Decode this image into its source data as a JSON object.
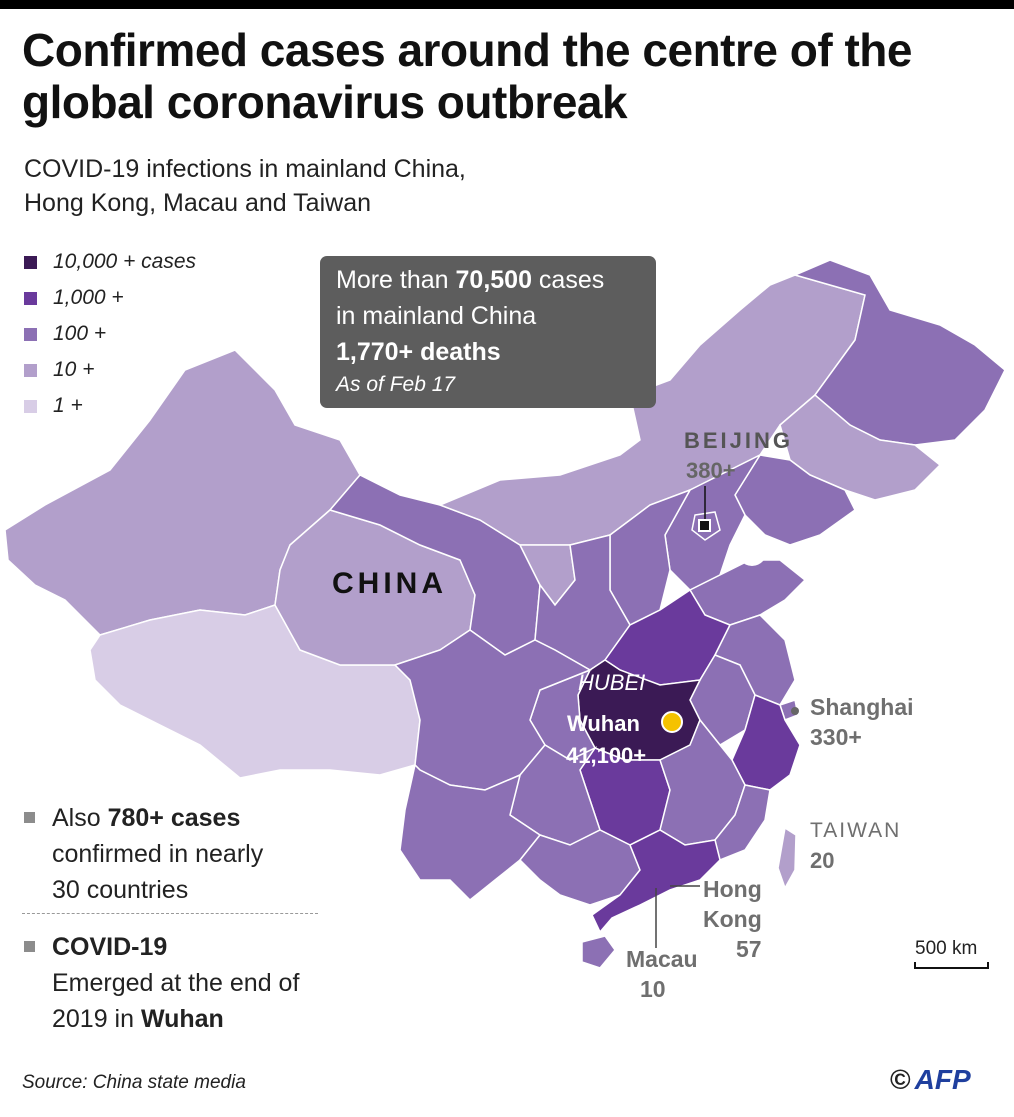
{
  "title": "Confirmed cases around the centre of the global coronavirus outbreak",
  "subtitle_line1": "COVID-19 infections in mainland China,",
  "subtitle_line2": "Hong Kong, Macau and Taiwan",
  "legend": [
    {
      "label": "10,000 + cases",
      "color": "#3b1a55"
    },
    {
      "label": "1,000 +",
      "color": "#6a3a9c"
    },
    {
      "label": "100 +",
      "color": "#8c70b4"
    },
    {
      "label": "10 +",
      "color": "#b29fcb"
    },
    {
      "label": "1 +",
      "color": "#d8cde6"
    }
  ],
  "callout": {
    "line1_pre": "More than ",
    "line1_bold": "70,500",
    "line1_post": " cases",
    "line2": "in mainland China",
    "line3": "1,770+ deaths",
    "line4": "As of Feb 17"
  },
  "map_labels": {
    "country": "CHINA",
    "beijing_name": "BEIJING",
    "beijing_count": "380+",
    "province": "HUBEI",
    "wuhan_name": "Wuhan",
    "wuhan_count": "41,100+",
    "shanghai_name": "Shanghai",
    "shanghai_count": "330+",
    "taiwan_name": "TAIWAN",
    "taiwan_count": "20",
    "hongkong_name_1": "Hong",
    "hongkong_name_2": "Kong",
    "hongkong_count": "57",
    "macau_name": "Macau",
    "macau_count": "10",
    "scale": "500 km"
  },
  "notes": {
    "n1_pre": "Also ",
    "n1_bold": "780+ cases",
    "n1_line2": "confirmed in nearly",
    "n1_line3": "30 countries",
    "n2_bold": "COVID-19",
    "n2_line2": "Emerged at the end of",
    "n2_line3_pre": "2019 in ",
    "n2_line3_bold": "Wuhan"
  },
  "source": "Source: China state media",
  "credit_symbol": "©",
  "credit_logo": "AFP",
  "colors": {
    "tier_10000": "#3b1a55",
    "tier_1000": "#6a3a9c",
    "tier_100": "#8c70b4",
    "tier_10": "#b29fcb",
    "tier_1": "#d8cde6",
    "wuhan_dot": "#f5c200",
    "callout_bg": "#5d5d5d"
  }
}
